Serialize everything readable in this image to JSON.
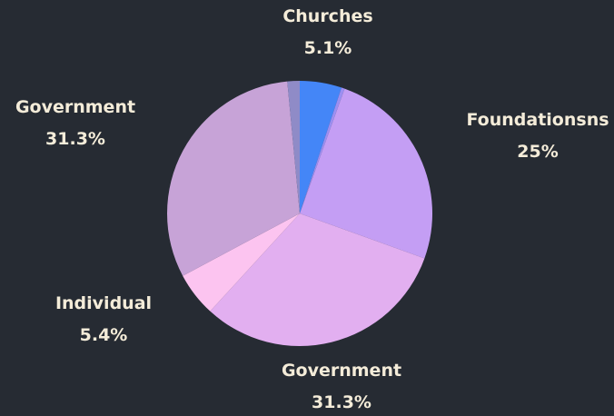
{
  "colors": {
    "background": "#262b33",
    "label_text": "#f4ecd9"
  },
  "chart_data": {
    "type": "pie",
    "title": "",
    "slices": [
      {
        "label": "Churches",
        "value": 5.1,
        "value_label": "5.1%",
        "color": "#4486f7",
        "labeled": true
      },
      {
        "label": "",
        "value": 0.4,
        "value_label": "",
        "color": "#9b8ff2",
        "labeled": false
      },
      {
        "label": "Foundationsns",
        "value": 25,
        "value_label": "25%",
        "color": "#c49ef4",
        "labeled": true
      },
      {
        "label": "Government",
        "value": 31.3,
        "value_label": "31.3%",
        "color": "#e2aff0",
        "labeled": true
      },
      {
        "label": "Individual",
        "value": 5.4,
        "value_label": "5.4%",
        "color": "#fcc4f0",
        "labeled": true
      },
      {
        "label": "Government",
        "value": 31.3,
        "value_label": "31.3%",
        "color": "#c7a3d7",
        "labeled": true
      },
      {
        "label": "",
        "value": 1.5,
        "value_label": "",
        "color": "#8f8bc7",
        "labeled": false
      }
    ],
    "legend": "none"
  }
}
